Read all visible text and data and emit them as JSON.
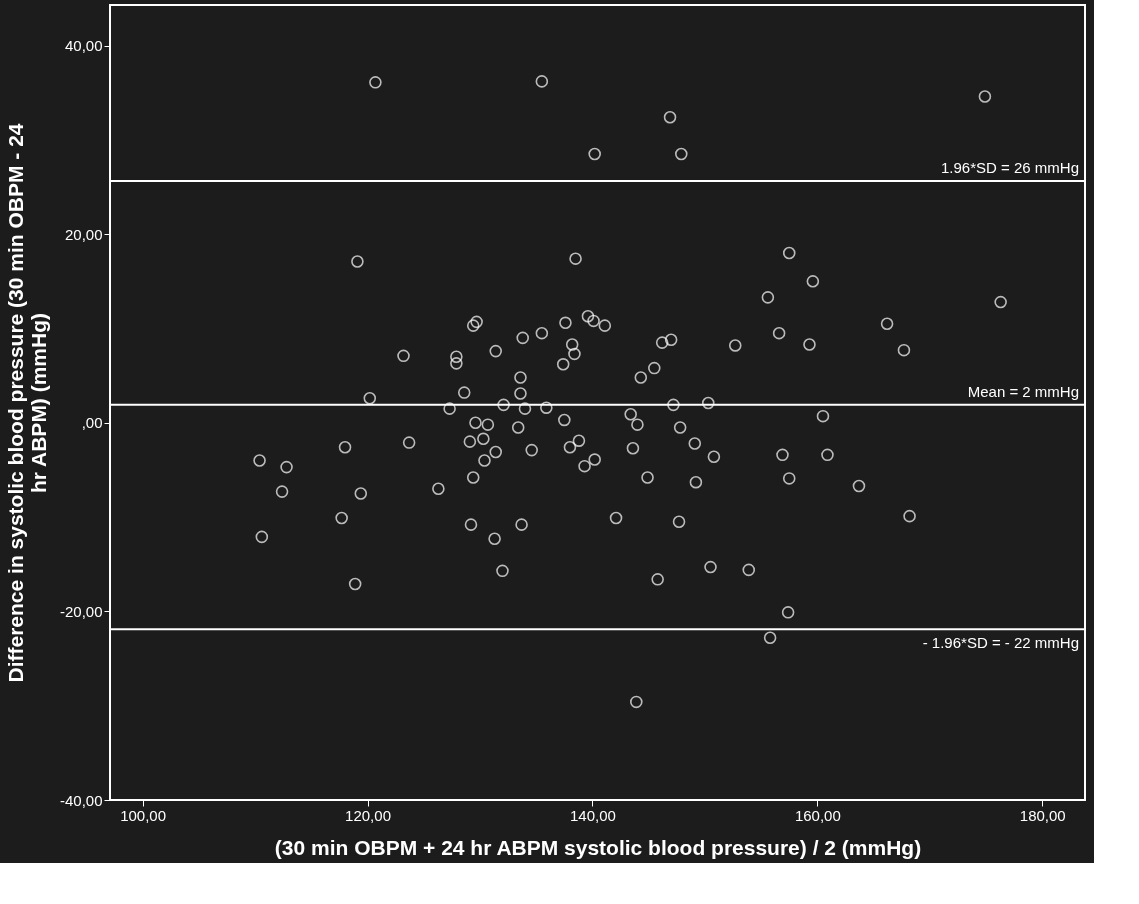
{
  "chart_data": {
    "type": "scatter",
    "xlabel": "(30 min OBPM + 24 hr ABPM systolic blood pressure) / 2 (mmHg)",
    "ylabel": "Difference in systolic blood pressure (30 min OBPM - 24\nhr ABPM) (mmHg)",
    "xlim": [
      97.1,
      183.8
    ],
    "ylim": [
      -40,
      44.3
    ],
    "xticks": [
      {
        "value": 100,
        "label": "100,00"
      },
      {
        "value": 120,
        "label": "120,00"
      },
      {
        "value": 140,
        "label": "140,00"
      },
      {
        "value": 160,
        "label": "160,00"
      },
      {
        "value": 180,
        "label": "180,00"
      }
    ],
    "yticks": [
      {
        "value": -40,
        "label": "-40,00"
      },
      {
        "value": -20,
        "label": "-20,00"
      },
      {
        "value": 0,
        "label": ",00"
      },
      {
        "value": 20,
        "label": "20,00"
      },
      {
        "value": 40,
        "label": "40,00"
      }
    ],
    "grid": false,
    "marker": "circle",
    "series": [
      {
        "color": "#ffffff",
        "x": [
          120.7,
          135.5,
          146.9,
          140.2,
          147.9,
          174.9,
          119.1,
          138.5,
          157.5,
          155.6,
          159.6,
          176.3,
          166.2,
          167.7,
          156.6,
          159.3,
          152.7,
          147.0,
          146.2,
          139.6,
          140.1,
          141.1,
          137.6,
          129.4,
          129.7,
          123.2,
          127.9,
          127.9,
          131.4,
          133.8,
          135.5,
          138.2,
          138.4,
          137.4,
          133.6,
          144.3,
          145.5,
          128.6,
          133.6,
          120.2,
          127.3,
          132.1,
          134.0,
          135.9,
          147.2,
          150.3,
          143.4,
          160.5,
          137.5,
          129.6,
          130.7,
          133.4,
          144.0,
          147.8,
          110.4,
          112.8,
          118.0,
          123.7,
          129.1,
          130.3,
          130.4,
          131.4,
          134.6,
          138.0,
          138.8,
          140.2,
          139.3,
          143.6,
          149.1,
          150.8,
          156.9,
          160.9,
          129.4,
          144.9,
          149.2,
          157.5,
          163.7,
          112.4,
          119.4,
          126.3,
          117.7,
          129.2,
          133.7,
          142.1,
          147.7,
          168.2,
          110.6,
          131.3,
          132.0,
          145.8,
          150.5,
          153.9,
          118.9,
          157.4,
          155.8,
          143.9
        ],
        "values": [
          36.1,
          36.2,
          32.4,
          28.5,
          28.5,
          34.6,
          17.1,
          17.4,
          18.0,
          13.3,
          15.0,
          12.8,
          10.5,
          7.7,
          9.5,
          8.3,
          8.2,
          8.8,
          8.5,
          11.3,
          10.8,
          10.3,
          10.6,
          10.3,
          10.7,
          7.1,
          7.0,
          6.3,
          7.6,
          9.0,
          9.5,
          8.3,
          7.3,
          6.2,
          4.8,
          4.8,
          5.8,
          3.2,
          3.1,
          2.6,
          1.5,
          1.9,
          1.5,
          1.6,
          1.9,
          2.1,
          0.9,
          0.7,
          0.3,
          0.0,
          -0.2,
          -0.5,
          -0.2,
          -0.5,
          -4.0,
          -4.7,
          -2.6,
          -2.1,
          -2.0,
          -1.7,
          -4.0,
          -3.1,
          -2.9,
          -2.6,
          -1.9,
          -3.9,
          -4.6,
          -2.7,
          -2.2,
          -3.6,
          -3.4,
          -3.4,
          -5.8,
          -5.8,
          -6.3,
          -5.9,
          -6.7,
          -7.3,
          -7.5,
          -7.0,
          -10.1,
          -10.8,
          -10.8,
          -10.1,
          -10.5,
          -9.9,
          -12.1,
          -12.3,
          -15.7,
          -16.6,
          -15.3,
          -15.6,
          -17.1,
          -20.1,
          -22.8,
          -29.6
        ]
      }
    ],
    "ref_lines": [
      {
        "axis": "y",
        "value": 25.65,
        "label": "1.96*SD = 26 mmHg",
        "color": "#ffffff"
      },
      {
        "axis": "y",
        "value": 1.9,
        "label": "Mean = 2 mmHg",
        "color": "#ffffff"
      },
      {
        "axis": "y",
        "value": -21.9,
        "label": "- 1.96*SD = - 22 mmHg",
        "color": "#ffffff"
      }
    ]
  }
}
